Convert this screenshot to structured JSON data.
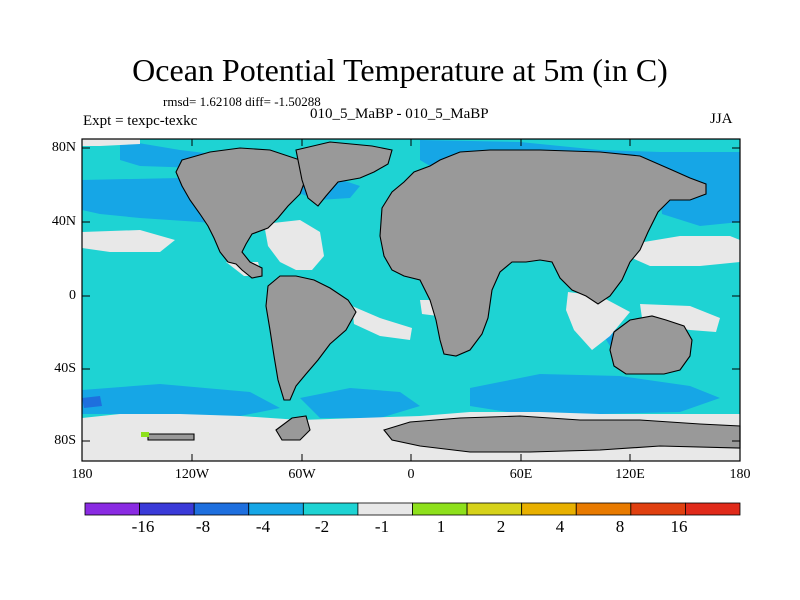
{
  "title": "Ocean Potential Temperature at 5m (in C)",
  "stats": "rmsd= 1.62108 diff= -1.50288",
  "experiment": "Expt = texpc-texkc",
  "case_label": "010_5_MaBP - 010_5_MaBP",
  "season": "JJA",
  "lat_ticks": [
    "80N",
    "40N",
    "0",
    "40S",
    "80S"
  ],
  "lon_ticks": [
    "180",
    "120W",
    "60W",
    "0",
    "60E",
    "120E",
    "180"
  ],
  "colorbar": {
    "colors": [
      "#8a2be2",
      "#3a3ad8",
      "#1e6fde",
      "#16a6e6",
      "#1ed3d3",
      "#e8e8e8",
      "#8ee01c",
      "#d6d21a",
      "#e8b000",
      "#e87a00",
      "#e04010",
      "#e02a1a"
    ],
    "labels": [
      "-16",
      "-8",
      "-4",
      "-2",
      "-1",
      "1",
      "2",
      "4",
      "8",
      "16"
    ]
  },
  "field_colors": {
    "ocean_main": "#1ed3d3",
    "ocean_cool": "#16a6e6",
    "ocean_cold": "#1e6fde",
    "near_zero": "#e8e8e8",
    "land": "#999999",
    "warm_spot": "#8ee01c"
  }
}
